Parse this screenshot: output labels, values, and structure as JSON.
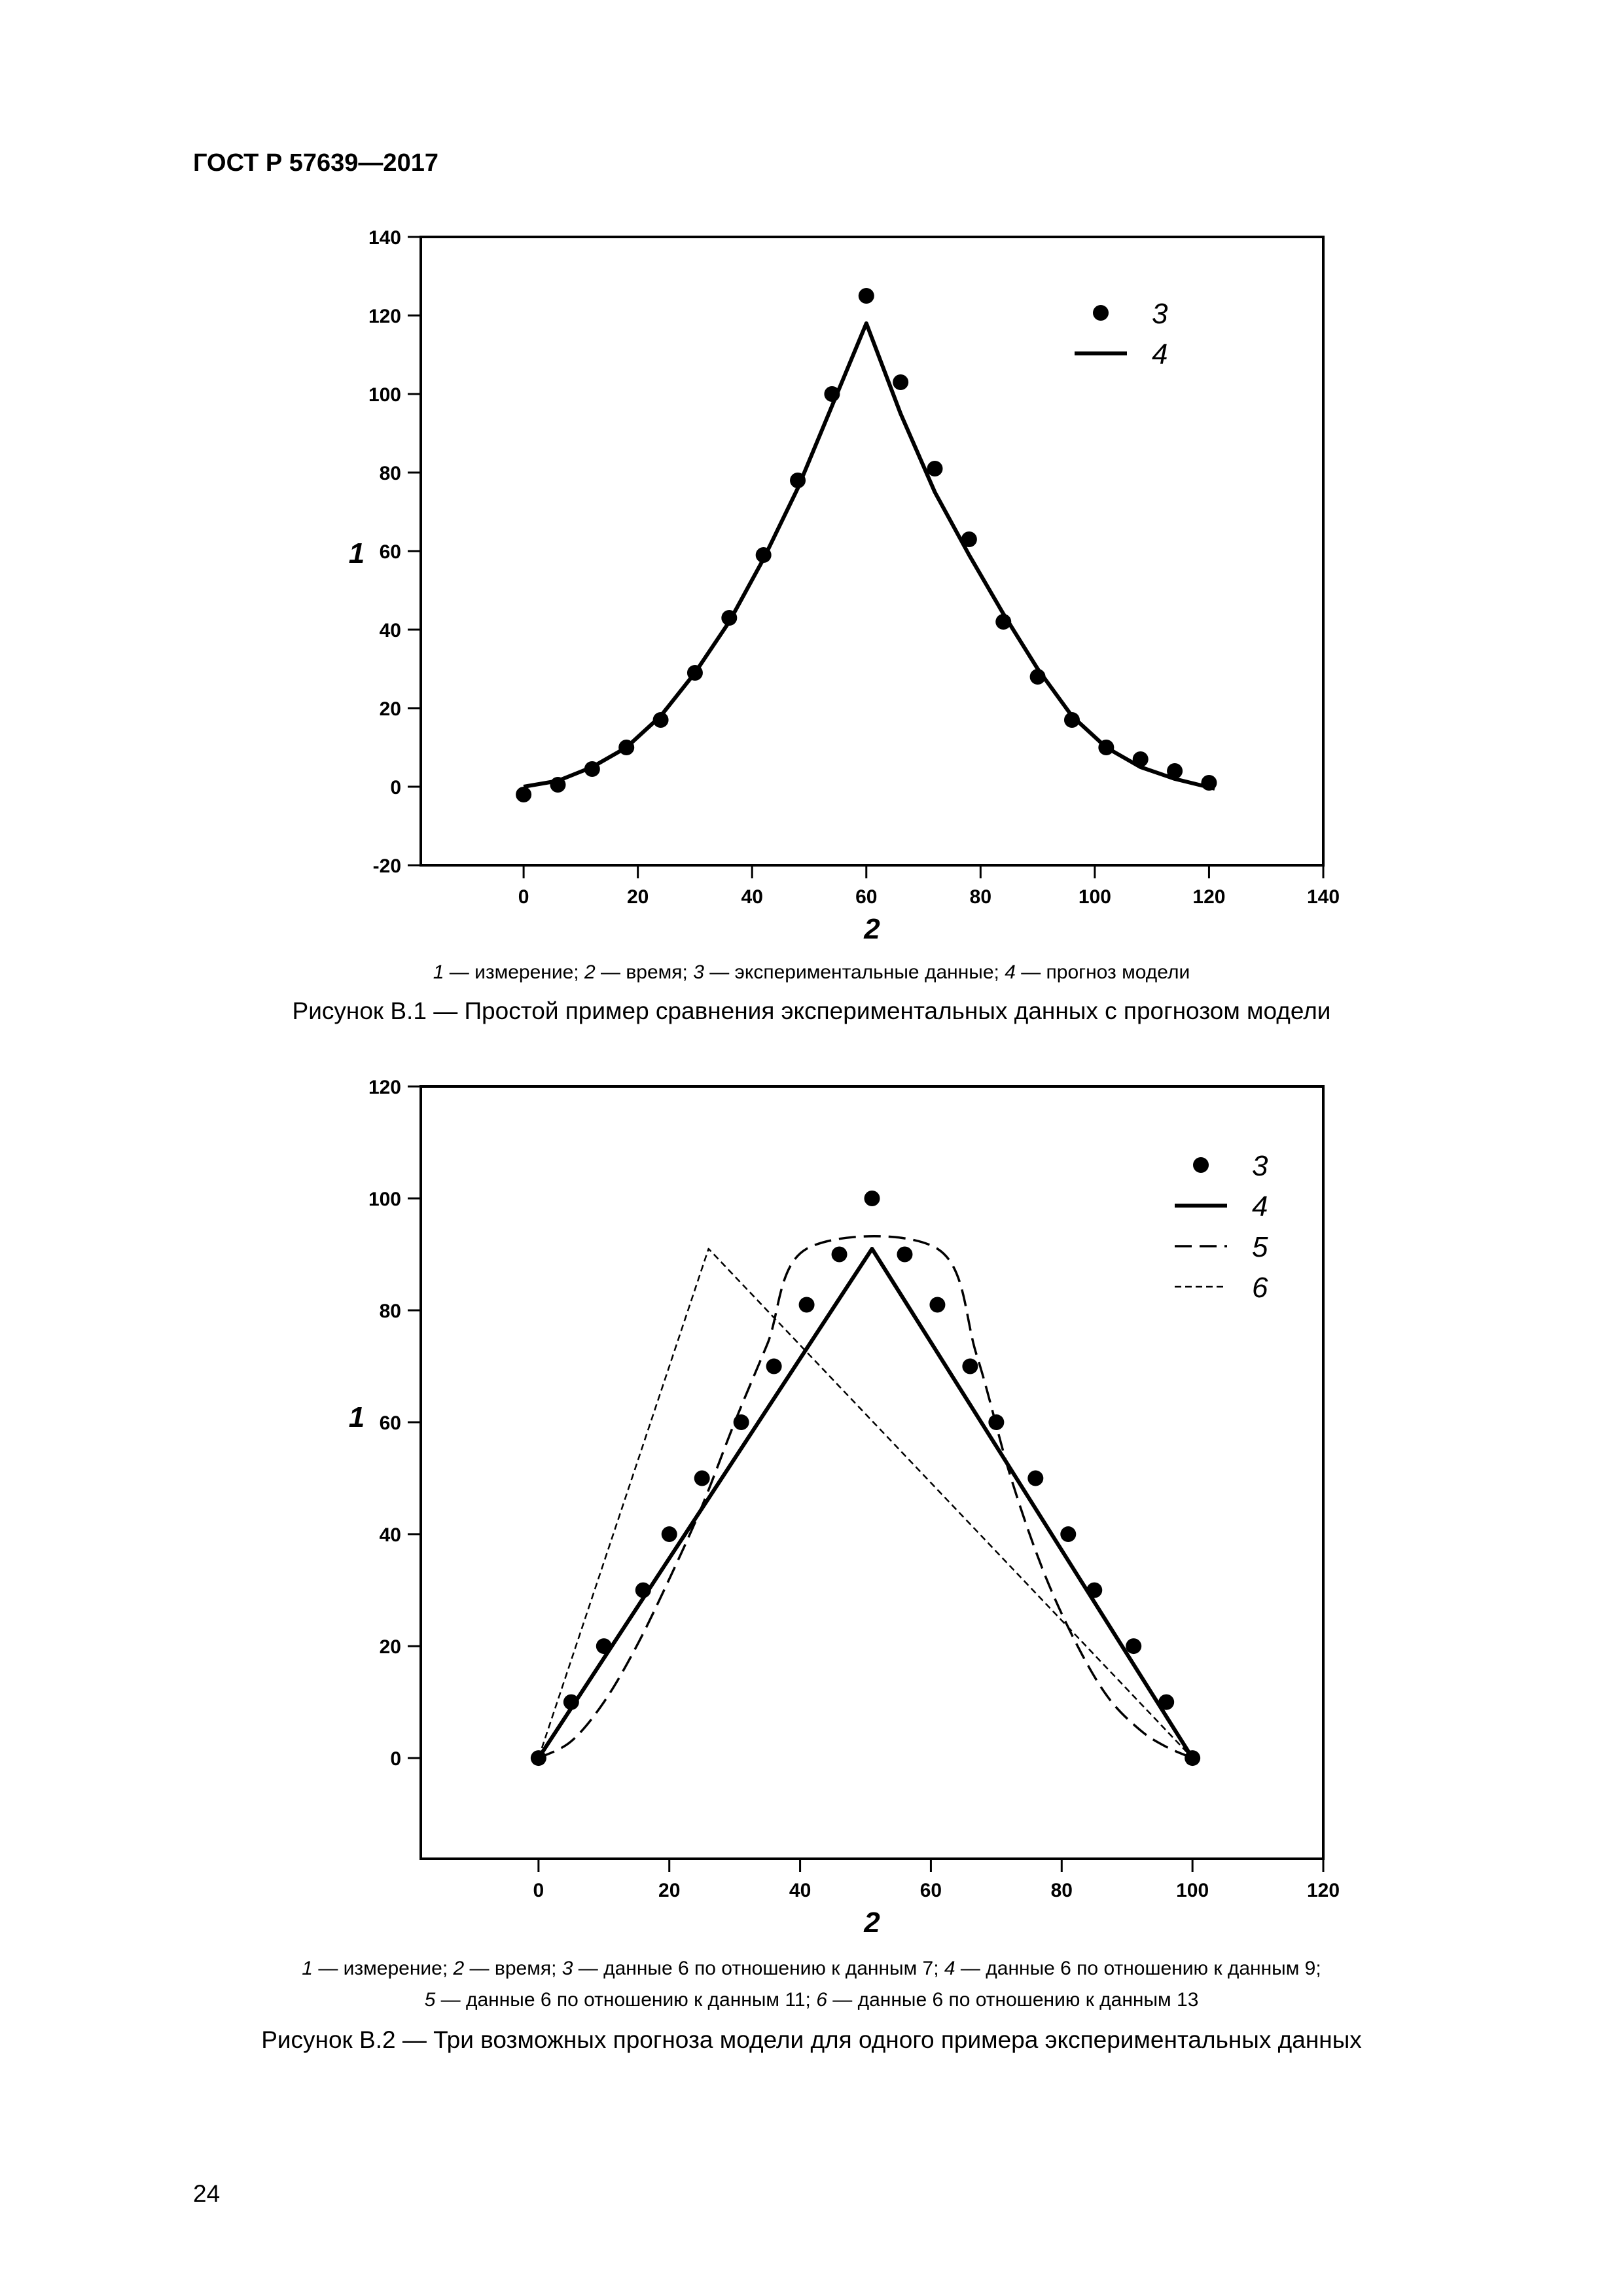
{
  "header": "ГОСТ Р 57639—2017",
  "page_number": "24",
  "chart_data": [
    {
      "type": "line",
      "xlabel": "2",
      "ylabel": "1",
      "xlim": [
        -18,
        140
      ],
      "ylim": [
        -20,
        140
      ],
      "xticks": [
        0,
        20,
        40,
        60,
        80,
        100,
        120,
        140
      ],
      "yticks": [
        -20,
        0,
        20,
        40,
        60,
        80,
        100,
        120,
        140
      ],
      "legend_position": "top-right",
      "series": [
        {
          "name": "3",
          "kind": "points",
          "x": [
            0,
            6,
            12,
            18,
            24,
            30,
            36,
            42,
            48,
            54,
            60,
            66,
            72,
            78,
            84,
            90,
            96,
            102,
            108,
            114,
            120
          ],
          "y": [
            -2,
            0.5,
            4.5,
            10,
            17,
            29,
            43,
            59,
            78,
            100,
            125,
            103,
            81,
            63,
            42,
            28,
            17,
            10,
            7,
            4,
            1
          ]
        },
        {
          "name": "4",
          "kind": "solid",
          "x": [
            0,
            6,
            12,
            18,
            24,
            30,
            36,
            42,
            48,
            54,
            60,
            66,
            72,
            78,
            84,
            90,
            96,
            102,
            108,
            114,
            121
          ],
          "y": [
            0,
            1.5,
            5,
            10,
            18,
            29,
            42,
            58,
            76,
            97,
            118,
            95,
            75,
            59,
            44,
            30,
            18,
            10,
            5,
            2,
            -0.5
          ]
        }
      ],
      "legend_note": [
        {
          "n": "1",
          "t": " — измерение; "
        },
        {
          "n": "2",
          "t": " — время; "
        },
        {
          "n": "3",
          "t": " — экспериментальные данные; "
        },
        {
          "n": "4",
          "t": " — прогноз модели"
        }
      ],
      "caption": "Рисунок В.1 — Простой пример сравнения экспериментальных данных с прогнозом модели"
    },
    {
      "type": "line",
      "xlabel": "2",
      "ylabel": "1",
      "xlim": [
        -18,
        120
      ],
      "ylim": [
        -18,
        120
      ],
      "xticks": [
        0,
        20,
        40,
        60,
        80,
        100,
        120
      ],
      "yticks": [
        0,
        20,
        40,
        60,
        80,
        100,
        120
      ],
      "legend_position": "top-right",
      "series": [
        {
          "name": "3",
          "kind": "points",
          "x": [
            0,
            5,
            10,
            16,
            20,
            25,
            31,
            36,
            41,
            46,
            51,
            56,
            61,
            66,
            70,
            76,
            81,
            85,
            91,
            96,
            100
          ],
          "y": [
            0,
            10,
            20,
            30,
            40,
            50,
            60,
            70,
            81,
            90,
            100,
            90,
            81,
            70,
            60,
            50,
            40,
            30,
            20,
            10,
            0
          ]
        },
        {
          "name": "4",
          "kind": "solid",
          "x": [
            0,
            51,
            100
          ],
          "y": [
            0,
            91,
            0
          ]
        },
        {
          "name": "5",
          "kind": "dashed",
          "x": [
            0,
            5,
            10,
            15,
            20,
            25,
            30,
            35,
            41,
            61,
            67,
            72,
            77,
            82,
            87,
            92,
            96,
            100
          ],
          "y": [
            0,
            3,
            10,
            20,
            32,
            45,
            60,
            74,
            91,
            91,
            72,
            51,
            34,
            21,
            11,
            5,
            2,
            0
          ],
          "smooth": true
        },
        {
          "name": "6",
          "kind": "fine-dashed",
          "x": [
            0,
            26,
            100
          ],
          "y": [
            0,
            91,
            0
          ]
        }
      ],
      "legend_note": [
        {
          "n": "1",
          "t": " — измерение; "
        },
        {
          "n": "2",
          "t": " — время; "
        },
        {
          "n": "3",
          "t": " — данные 6 по отношению к данным 7; "
        },
        {
          "n": "4",
          "t": " — данные 6 по отношению к данным 9;"
        },
        {
          "n": "5",
          "t": " — данные 6 по отношению к данным 11; "
        },
        {
          "n": "6",
          "t": " — данные 6 по отношению к данным 13"
        }
      ],
      "caption": "Рисунок В.2 — Три возможных прогноза модели для одного примера экспериментальных данных"
    }
  ]
}
